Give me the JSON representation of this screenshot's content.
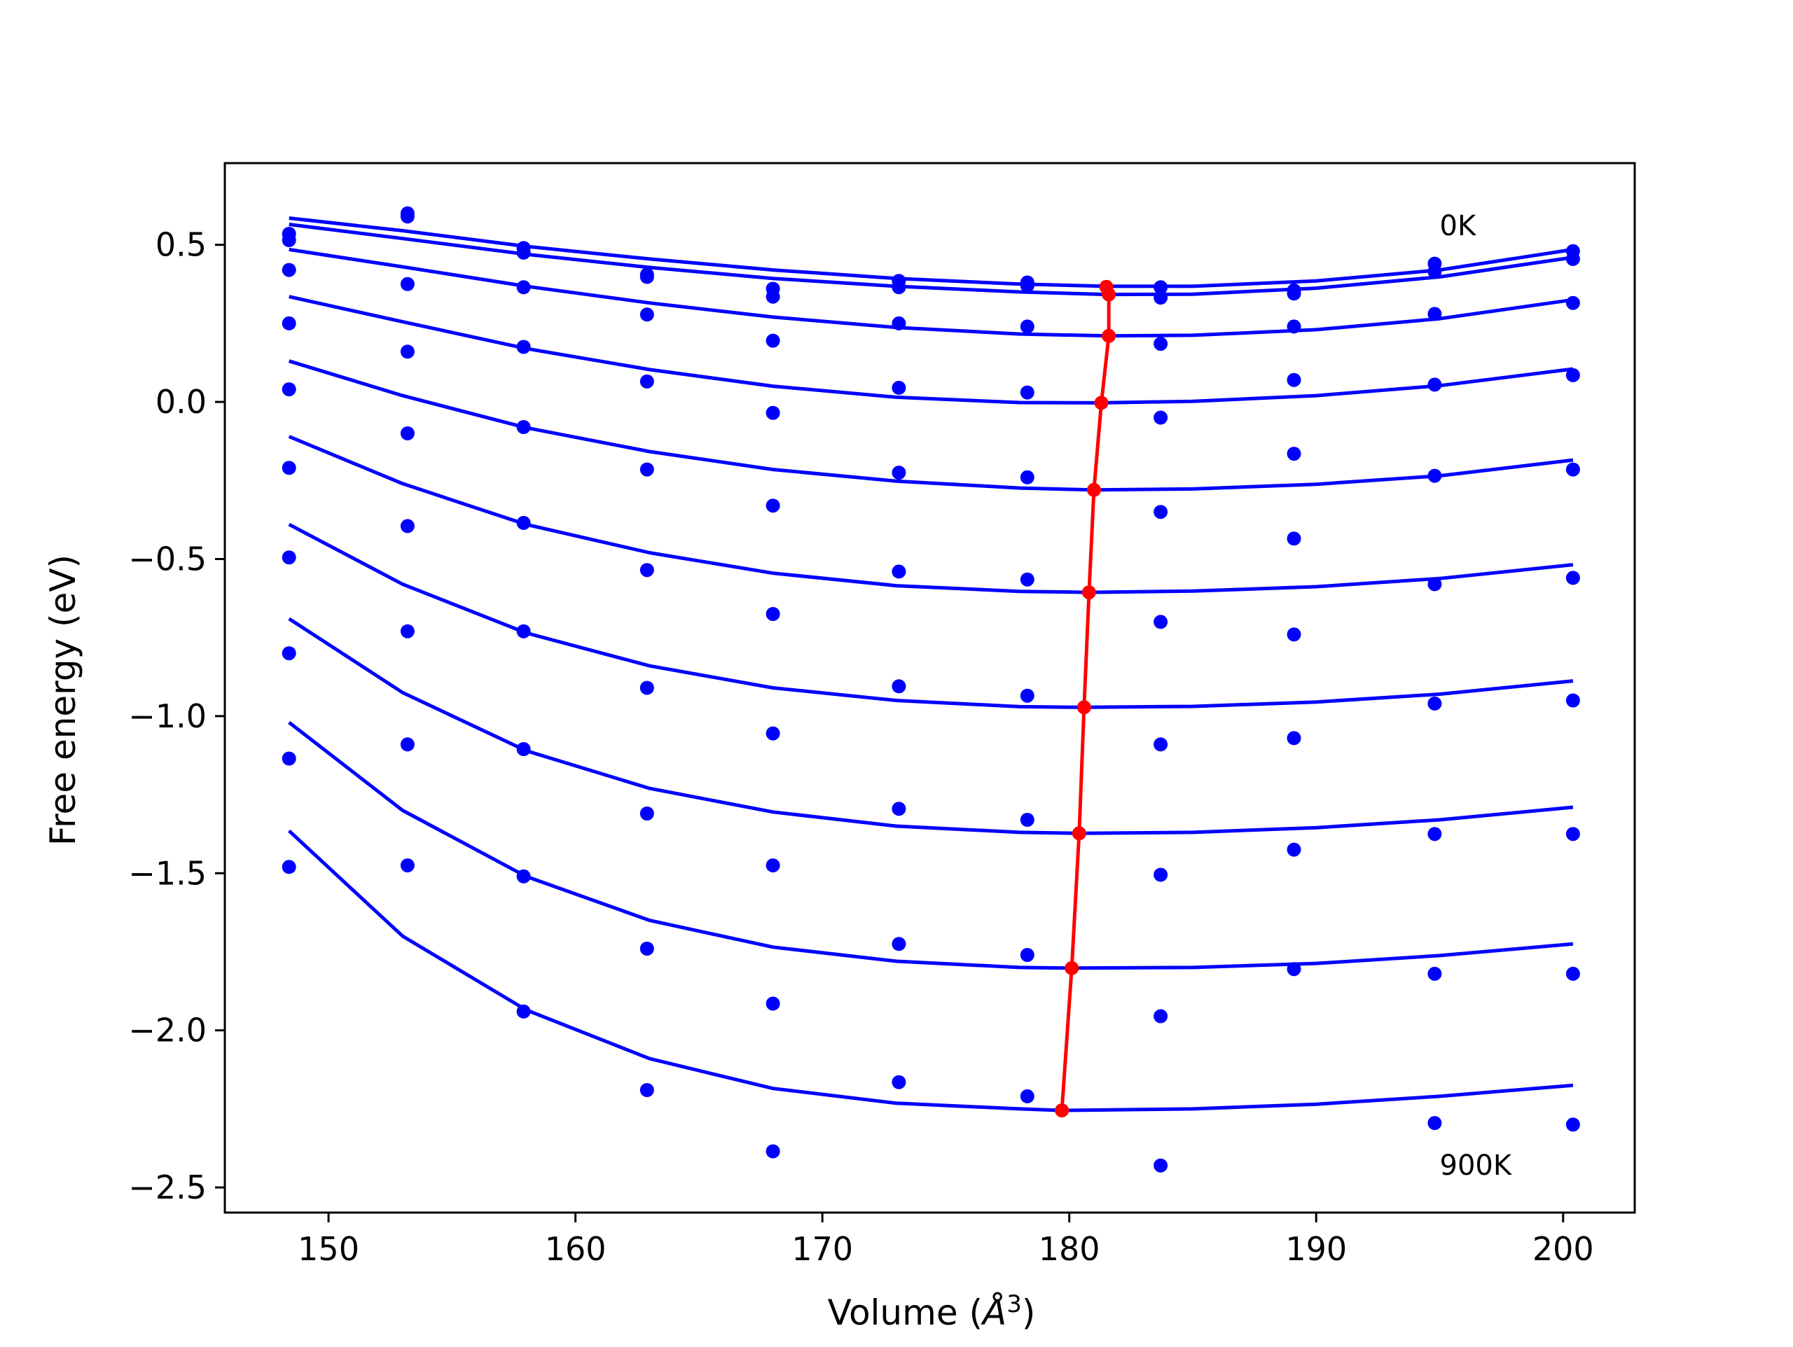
{
  "chart_data": {
    "type": "scatter",
    "xlabel": "Volume (Å³)",
    "xlabel_parts": {
      "prefix": "Volume (",
      "symbol": "Å",
      "exponent": "3",
      "suffix": ")"
    },
    "ylabel": "Free energy (eV)",
    "xlim": [
      145.8,
      202.9
    ],
    "ylim": [
      -2.58,
      0.76
    ],
    "xticks": [
      150,
      160,
      170,
      180,
      190,
      200
    ],
    "xtick_labels": [
      "150",
      "160",
      "170",
      "180",
      "190",
      "200"
    ],
    "yticks": [
      0.5,
      0.0,
      -0.5,
      -1.0,
      -1.5,
      -2.0,
      -2.5
    ],
    "ytick_labels": [
      "0.5",
      "0.0",
      "−0.5",
      "−1.0",
      "−1.5",
      "−2.0",
      "−2.5"
    ],
    "grid": false,
    "annotations": [
      {
        "text": "0K",
        "x": 195.0,
        "y": 0.53
      },
      {
        "text": "900K",
        "x": 195.0,
        "y": -2.46
      }
    ],
    "colors": {
      "data": "#0000ff",
      "fit": "#0000ff",
      "minimum": "#ff0000"
    },
    "x": [
      148.4,
      153.2,
      157.9,
      162.9,
      168.0,
      173.1,
      178.3,
      183.7,
      189.1,
      194.8,
      200.4
    ],
    "series": [
      {
        "values": [
          0.535,
          0.6,
          0.49,
          0.405,
          0.36,
          0.385,
          0.38,
          0.365,
          0.355,
          0.44,
          0.48
        ],
        "fit": [
          [
            148.4,
            0.585
          ],
          [
            153.0,
            0.545
          ],
          [
            158.0,
            0.495
          ],
          [
            163.0,
            0.455
          ],
          [
            168.0,
            0.42
          ],
          [
            173.0,
            0.393
          ],
          [
            178.0,
            0.375
          ],
          [
            181.5,
            0.368
          ],
          [
            185.0,
            0.368
          ],
          [
            190.0,
            0.385
          ],
          [
            195.0,
            0.42
          ],
          [
            200.4,
            0.485
          ]
        ]
      },
      {
        "values": [
          0.515,
          0.59,
          0.475,
          0.398,
          0.335,
          0.365,
          0.37,
          0.332,
          0.345,
          0.415,
          0.455
        ],
        "fit": [
          [
            148.4,
            0.565
          ],
          [
            153.0,
            0.52
          ],
          [
            158.0,
            0.47
          ],
          [
            163.0,
            0.428
          ],
          [
            168.0,
            0.393
          ],
          [
            173.0,
            0.368
          ],
          [
            178.0,
            0.35
          ],
          [
            181.5,
            0.342
          ],
          [
            185.0,
            0.343
          ],
          [
            190.0,
            0.362
          ],
          [
            195.0,
            0.398
          ],
          [
            200.4,
            0.46
          ]
        ]
      },
      {
        "values": [
          0.42,
          0.375,
          0.365,
          0.278,
          0.195,
          0.25,
          0.24,
          0.185,
          0.24,
          0.28,
          0.315
        ],
        "fit": [
          [
            148.4,
            0.485
          ],
          [
            153.0,
            0.43
          ],
          [
            158.0,
            0.368
          ],
          [
            163.0,
            0.315
          ],
          [
            168.0,
            0.27
          ],
          [
            173.0,
            0.237
          ],
          [
            178.0,
            0.216
          ],
          [
            181.6,
            0.21
          ],
          [
            185.0,
            0.212
          ],
          [
            190.0,
            0.23
          ],
          [
            195.0,
            0.265
          ],
          [
            200.4,
            0.325
          ]
        ]
      },
      {
        "values": [
          0.25,
          0.16,
          0.175,
          0.065,
          -0.035,
          0.045,
          0.03,
          -0.05,
          0.07,
          0.055,
          0.085
        ],
        "fit": [
          [
            148.4,
            0.335
          ],
          [
            153.0,
            0.255
          ],
          [
            158.0,
            0.17
          ],
          [
            163.0,
            0.103
          ],
          [
            168.0,
            0.05
          ],
          [
            173.0,
            0.015
          ],
          [
            178.0,
            -0.002
          ],
          [
            181.3,
            -0.003
          ],
          [
            185.0,
            0.002
          ],
          [
            190.0,
            0.02
          ],
          [
            195.0,
            0.052
          ],
          [
            200.4,
            0.105
          ]
        ]
      },
      {
        "values": [
          0.04,
          -0.1,
          -0.08,
          -0.215,
          -0.33,
          -0.225,
          -0.24,
          -0.35,
          -0.165,
          -0.235,
          -0.215
        ],
        "fit": [
          [
            148.4,
            0.13
          ],
          [
            153.0,
            0.02
          ],
          [
            158.0,
            -0.082
          ],
          [
            163.0,
            -0.158
          ],
          [
            168.0,
            -0.215
          ],
          [
            173.0,
            -0.252
          ],
          [
            178.0,
            -0.274
          ],
          [
            181.0,
            -0.28
          ],
          [
            185.0,
            -0.277
          ],
          [
            190.0,
            -0.262
          ],
          [
            195.0,
            -0.235
          ],
          [
            200.4,
            -0.185
          ]
        ]
      },
      {
        "values": [
          -0.21,
          -0.395,
          -0.385,
          -0.535,
          -0.675,
          -0.54,
          -0.565,
          -0.7,
          -0.435,
          -0.58,
          -0.56
        ],
        "fit": [
          [
            148.4,
            -0.11
          ],
          [
            153.0,
            -0.26
          ],
          [
            158.0,
            -0.39
          ],
          [
            163.0,
            -0.48
          ],
          [
            168.0,
            -0.545
          ],
          [
            173.0,
            -0.585
          ],
          [
            178.0,
            -0.603
          ],
          [
            180.8,
            -0.606
          ],
          [
            185.0,
            -0.602
          ],
          [
            190.0,
            -0.588
          ],
          [
            195.0,
            -0.562
          ],
          [
            200.4,
            -0.518
          ]
        ]
      },
      {
        "values": [
          -0.495,
          -0.73,
          -0.73,
          -0.91,
          -1.055,
          -0.905,
          -0.935,
          -1.09,
          -0.74,
          -0.96,
          -0.95
        ],
        "fit": [
          [
            148.4,
            -0.39
          ],
          [
            153.0,
            -0.58
          ],
          [
            158.0,
            -0.735
          ],
          [
            163.0,
            -0.84
          ],
          [
            168.0,
            -0.91
          ],
          [
            173.0,
            -0.95
          ],
          [
            178.0,
            -0.97
          ],
          [
            180.6,
            -0.972
          ],
          [
            185.0,
            -0.969
          ],
          [
            190.0,
            -0.955
          ],
          [
            195.0,
            -0.93
          ],
          [
            200.4,
            -0.888
          ]
        ]
      },
      {
        "values": [
          -0.8,
          -1.09,
          -1.105,
          -1.31,
          -1.475,
          -1.295,
          -1.33,
          -1.505,
          -1.07,
          -1.375,
          -1.375
        ],
        "fit": [
          [
            148.4,
            -0.69
          ],
          [
            153.0,
            -0.925
          ],
          [
            158.0,
            -1.11
          ],
          [
            163.0,
            -1.23
          ],
          [
            168.0,
            -1.305
          ],
          [
            173.0,
            -1.35
          ],
          [
            178.0,
            -1.37
          ],
          [
            180.4,
            -1.373
          ],
          [
            185.0,
            -1.37
          ],
          [
            190.0,
            -1.355
          ],
          [
            195.0,
            -1.33
          ],
          [
            200.4,
            -1.29
          ]
        ]
      },
      {
        "values": [
          -1.135,
          -1.475,
          -1.51,
          -1.74,
          -1.915,
          -1.725,
          -1.76,
          -1.955,
          -1.425,
          -1.82,
          -1.82
        ],
        "fit": [
          [
            148.4,
            -1.02
          ],
          [
            153.0,
            -1.3
          ],
          [
            158.0,
            -1.51
          ],
          [
            163.0,
            -1.65
          ],
          [
            168.0,
            -1.735
          ],
          [
            173.0,
            -1.78
          ],
          [
            178.0,
            -1.8
          ],
          [
            180.1,
            -1.802
          ],
          [
            185.0,
            -1.8
          ],
          [
            190.0,
            -1.787
          ],
          [
            195.0,
            -1.762
          ],
          [
            200.4,
            -1.725
          ]
        ]
      },
      {
        "values": [
          -1.48,
          null,
          -1.94,
          -2.19,
          -2.385,
          -2.165,
          -2.21,
          -2.43,
          -1.805,
          -2.295,
          -2.3
        ],
        "fit": [
          [
            148.4,
            -1.365
          ],
          [
            153.0,
            -1.7
          ],
          [
            158.0,
            -1.935
          ],
          [
            163.0,
            -2.09
          ],
          [
            168.0,
            -2.185
          ],
          [
            173.0,
            -2.232
          ],
          [
            178.0,
            -2.25
          ],
          [
            179.7,
            -2.255
          ],
          [
            185.0,
            -2.25
          ],
          [
            190.0,
            -2.235
          ],
          [
            195.0,
            -2.21
          ],
          [
            200.4,
            -2.175
          ]
        ]
      }
    ],
    "minimum_curve": {
      "x": [
        181.5,
        181.6,
        181.6,
        181.3,
        181.0,
        180.8,
        180.6,
        180.4,
        180.1,
        179.7
      ],
      "y": [
        0.366,
        0.342,
        0.21,
        -0.003,
        -0.28,
        -0.606,
        -0.972,
        -1.373,
        -1.802,
        -2.255
      ]
    }
  }
}
